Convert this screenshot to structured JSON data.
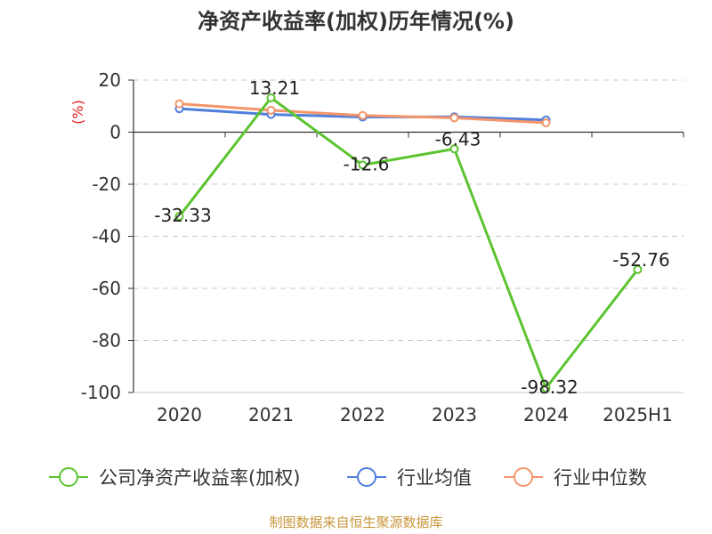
{
  "chart_data": {
    "type": "line",
    "title": "净资产收益率(加权)历年情况(%)",
    "ylabel": "(%)",
    "categories": [
      "2020",
      "2021",
      "2022",
      "2023",
      "2024",
      "2025H1"
    ],
    "ylim": [
      -100,
      20
    ],
    "yticks": [
      20,
      0,
      -20,
      -40,
      -60,
      -80,
      -100
    ],
    "grid": true,
    "legend_position": "bottom",
    "series": [
      {
        "name": "公司净资产收益率(加权)",
        "color": "#5dc431",
        "values": [
          -32.33,
          13.21,
          -12.6,
          -6.43,
          -98.32,
          -52.76
        ],
        "labels": [
          "-32.33",
          "13.21",
          "-12.6",
          "-6.43",
          "-98.32",
          "-52.76"
        ]
      },
      {
        "name": "行业均值",
        "color": "#4f7fdc",
        "values": [
          9.0,
          6.8,
          5.8,
          5.9,
          4.7,
          null
        ]
      },
      {
        "name": "行业中位数",
        "color": "#f4946b",
        "values": [
          10.9,
          8.4,
          6.4,
          5.5,
          3.6,
          null
        ]
      }
    ],
    "source": "制图数据来自恒生聚源数据库"
  }
}
